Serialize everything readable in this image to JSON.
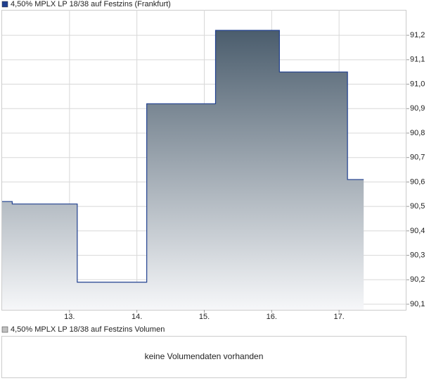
{
  "chart_data": {
    "type": "line",
    "title": "4,50% MPLX LP 18/38 auf Festzins (Frankfurt)",
    "series": [
      {
        "name": "4,50% MPLX LP 18/38 auf Festzins (Frankfurt)",
        "color": "#1f3f8f",
        "x": [
          12.0,
          12.15,
          12.15,
          13.115,
          13.115,
          14.146,
          14.146,
          15.167,
          15.167,
          16.115,
          16.115,
          17.125,
          17.125,
          17.365
        ],
        "values": [
          90.52,
          90.52,
          90.51,
          90.51,
          90.19,
          90.19,
          90.92,
          90.92,
          91.22,
          91.22,
          91.05,
          91.05,
          90.61,
          90.61
        ]
      }
    ],
    "xlim": [
      12,
      18
    ],
    "xticks": [
      {
        "value": 13,
        "label": "13."
      },
      {
        "value": 14,
        "label": "14."
      },
      {
        "value": 15,
        "label": "15."
      },
      {
        "value": 16,
        "label": "16."
      },
      {
        "value": 17,
        "label": "17."
      }
    ],
    "ylim": [
      90.077,
      91.304
    ],
    "yticks": [
      {
        "value": 90.1,
        "label": "90,1"
      },
      {
        "value": 90.2,
        "label": "90,2"
      },
      {
        "value": 90.3,
        "label": "90,3"
      },
      {
        "value": 90.4,
        "label": "90,4"
      },
      {
        "value": 90.5,
        "label": "90,5"
      },
      {
        "value": 90.6,
        "label": "90,6"
      },
      {
        "value": 90.7,
        "label": "90,7"
      },
      {
        "value": 90.8,
        "label": "90,8"
      },
      {
        "value": 90.9,
        "label": "90,9"
      },
      {
        "value": 91.0,
        "label": "91,0"
      },
      {
        "value": 91.1,
        "label": "91,1"
      },
      {
        "value": 91.2,
        "label": "91,2"
      }
    ],
    "grid": true,
    "volume_title": "4,50% MPLX LP 18/38 auf Festzins Volumen",
    "volume_color": "#c0c0c0",
    "volume_message": "keine Volumendaten vorhanden"
  }
}
